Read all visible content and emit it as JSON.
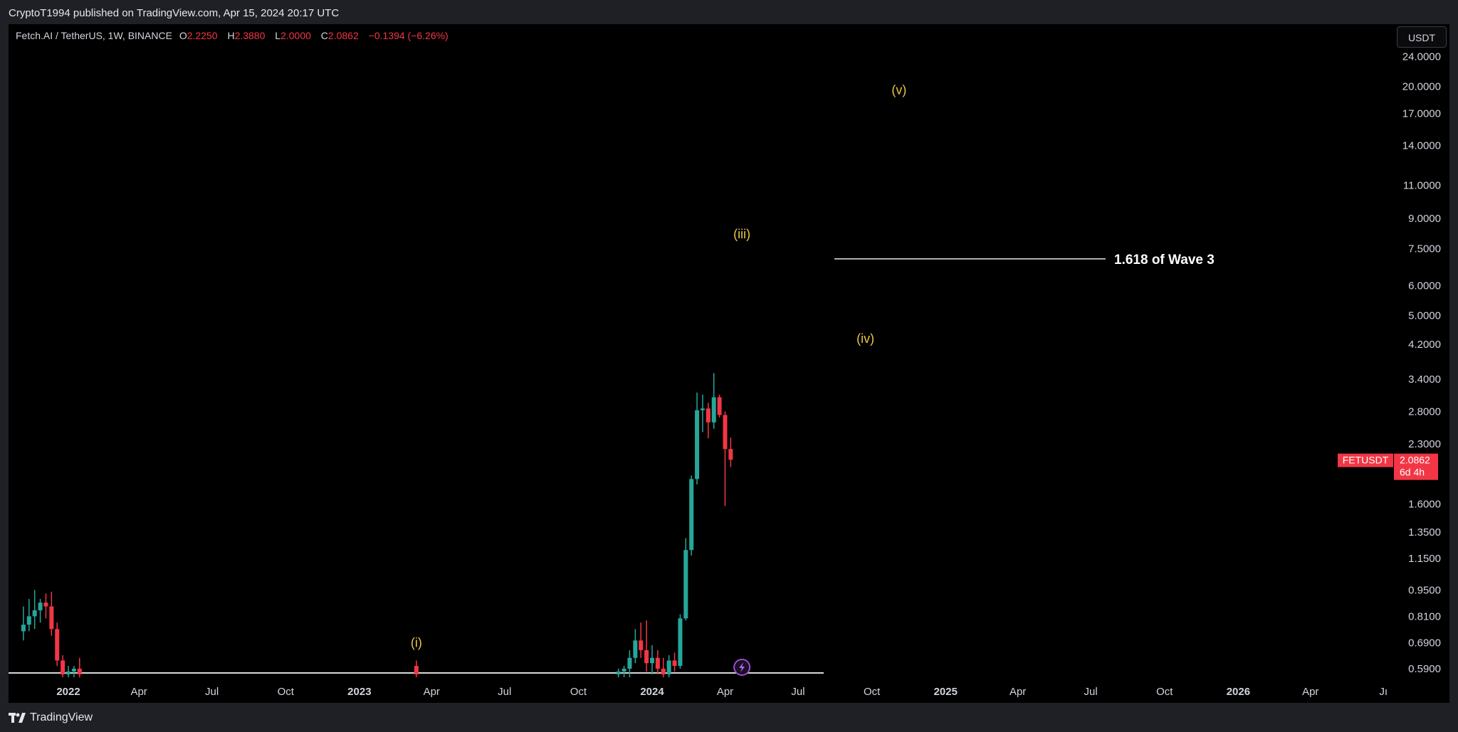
{
  "header": {
    "publish_line": "CryptoT1994 published on TradingView.com, Apr 15, 2024 20:17 UTC"
  },
  "legend": {
    "symbol": "Fetch.AI / TetherUS, 1W, BINANCE",
    "o_label": "O",
    "o_value": "2.2250",
    "h_label": "H",
    "h_value": "2.3880",
    "l_label": "L",
    "l_value": "2.0000",
    "c_label": "C",
    "c_value": "2.0862",
    "change": "−0.1394 (−6.26%)"
  },
  "currency_button": "USDT",
  "footer": {
    "brand": "TradingView"
  },
  "colors": {
    "background": "#000000",
    "up": "#26a69a",
    "down": "#f23645",
    "wave_label": "#e8c547",
    "price_tag": "#f23645"
  },
  "icons": {
    "lightning": "lightning-icon",
    "logo": "tradingview-logo-icon"
  },
  "chart_data": {
    "type": "candlestick",
    "y_scale": "log",
    "y_tick_labels": [
      "24.0000",
      "20.0000",
      "17.0000",
      "14.0000",
      "11.0000",
      "9.0000",
      "7.5000",
      "6.0000",
      "5.0000",
      "4.2000",
      "3.4000",
      "2.8000",
      "2.3000",
      "1.6000",
      "1.3500",
      "1.1500",
      "0.9500",
      "0.8100",
      "0.6900",
      "0.5900"
    ],
    "x_tick_labels": [
      "2022",
      "Apr",
      "Jul",
      "Oct",
      "2023",
      "Apr",
      "Jul",
      "Oct",
      "2024",
      "Apr",
      "Jul",
      "Oct",
      "2025",
      "Apr",
      "Jul",
      "Oct",
      "2026",
      "Apr",
      "Jı"
    ],
    "ylim": [
      0.57,
      27
    ],
    "horizontal_line": {
      "price": 0.57
    },
    "fib_line": {
      "price": 7.05,
      "label": "1.618 of Wave 3"
    },
    "wave_labels": [
      {
        "text": "(i)",
        "date": "2023-03-13",
        "price": 0.69
      },
      {
        "text": "(iii)",
        "date": "2024-04-22",
        "price": 8.2
      },
      {
        "text": "(iv)",
        "date": "2024-09-23",
        "price": 4.35
      },
      {
        "text": "(v)",
        "date": "2024-11-04",
        "price": 19.6
      }
    ],
    "price_tag": {
      "symbol": "FETUSDT",
      "price": "2.0862",
      "countdown": "6d 4h"
    },
    "candles": [
      {
        "date": "2021-11-08",
        "o": 0.74,
        "h": 0.86,
        "l": 0.7,
        "c": 0.77
      },
      {
        "date": "2021-11-15",
        "o": 0.77,
        "h": 0.9,
        "l": 0.74,
        "c": 0.81
      },
      {
        "date": "2021-11-22",
        "o": 0.81,
        "h": 0.95,
        "l": 0.75,
        "c": 0.84
      },
      {
        "date": "2021-11-29",
        "o": 0.84,
        "h": 0.9,
        "l": 0.78,
        "c": 0.88
      },
      {
        "date": "2021-12-06",
        "o": 0.88,
        "h": 0.93,
        "l": 0.8,
        "c": 0.86
      },
      {
        "date": "2021-12-13",
        "o": 0.86,
        "h": 0.94,
        "l": 0.72,
        "c": 0.75
      },
      {
        "date": "2021-12-20",
        "o": 0.75,
        "h": 0.78,
        "l": 0.6,
        "c": 0.62
      },
      {
        "date": "2021-12-27",
        "o": 0.62,
        "h": 0.64,
        "l": 0.56,
        "c": 0.57
      },
      {
        "date": "2022-01-03",
        "o": 0.57,
        "h": 0.6,
        "l": 0.56,
        "c": 0.58
      },
      {
        "date": "2022-01-10",
        "o": 0.58,
        "h": 0.6,
        "l": 0.56,
        "c": 0.59
      },
      {
        "date": "2022-01-17",
        "o": 0.59,
        "h": 0.63,
        "l": 0.56,
        "c": 0.57
      },
      {
        "date": "2023-03-13",
        "o": 0.6,
        "h": 0.62,
        "l": 0.56,
        "c": 0.57
      },
      {
        "date": "2023-11-20",
        "o": 0.57,
        "h": 0.59,
        "l": 0.56,
        "c": 0.58
      },
      {
        "date": "2023-11-27",
        "o": 0.58,
        "h": 0.6,
        "l": 0.56,
        "c": 0.59
      },
      {
        "date": "2023-12-04",
        "o": 0.59,
        "h": 0.66,
        "l": 0.56,
        "c": 0.63
      },
      {
        "date": "2023-12-11",
        "o": 0.63,
        "h": 0.75,
        "l": 0.61,
        "c": 0.7
      },
      {
        "date": "2023-12-18",
        "o": 0.7,
        "h": 0.78,
        "l": 0.63,
        "c": 0.66
      },
      {
        "date": "2023-12-25",
        "o": 0.66,
        "h": 0.79,
        "l": 0.58,
        "c": 0.61
      },
      {
        "date": "2024-01-01",
        "o": 0.61,
        "h": 0.68,
        "l": 0.57,
        "c": 0.63
      },
      {
        "date": "2024-01-08",
        "o": 0.63,
        "h": 0.66,
        "l": 0.57,
        "c": 0.59
      },
      {
        "date": "2024-01-15",
        "o": 0.59,
        "h": 0.63,
        "l": 0.56,
        "c": 0.57
      },
      {
        "date": "2024-01-22",
        "o": 0.57,
        "h": 0.64,
        "l": 0.56,
        "c": 0.62
      },
      {
        "date": "2024-01-29",
        "o": 0.62,
        "h": 0.65,
        "l": 0.58,
        "c": 0.6
      },
      {
        "date": "2024-02-05",
        "o": 0.6,
        "h": 0.82,
        "l": 0.59,
        "c": 0.8
      },
      {
        "date": "2024-02-12",
        "o": 0.8,
        "h": 1.3,
        "l": 0.79,
        "c": 1.21
      },
      {
        "date": "2024-02-19",
        "o": 1.21,
        "h": 1.9,
        "l": 1.17,
        "c": 1.86
      },
      {
        "date": "2024-02-26",
        "o": 1.86,
        "h": 3.14,
        "l": 1.8,
        "c": 2.82
      },
      {
        "date": "2024-03-04",
        "o": 2.82,
        "h": 3.1,
        "l": 2.47,
        "c": 2.85
      },
      {
        "date": "2024-03-11",
        "o": 2.85,
        "h": 2.95,
        "l": 2.38,
        "c": 2.62
      },
      {
        "date": "2024-03-18",
        "o": 2.62,
        "h": 3.53,
        "l": 2.52,
        "c": 3.05
      },
      {
        "date": "2024-03-25",
        "o": 3.05,
        "h": 3.1,
        "l": 2.7,
        "c": 2.74
      },
      {
        "date": "2024-04-01",
        "o": 2.74,
        "h": 2.8,
        "l": 1.58,
        "c": 2.23
      },
      {
        "date": "2024-04-08",
        "o": 2.23,
        "h": 2.39,
        "l": 2.0,
        "c": 2.09
      }
    ]
  }
}
